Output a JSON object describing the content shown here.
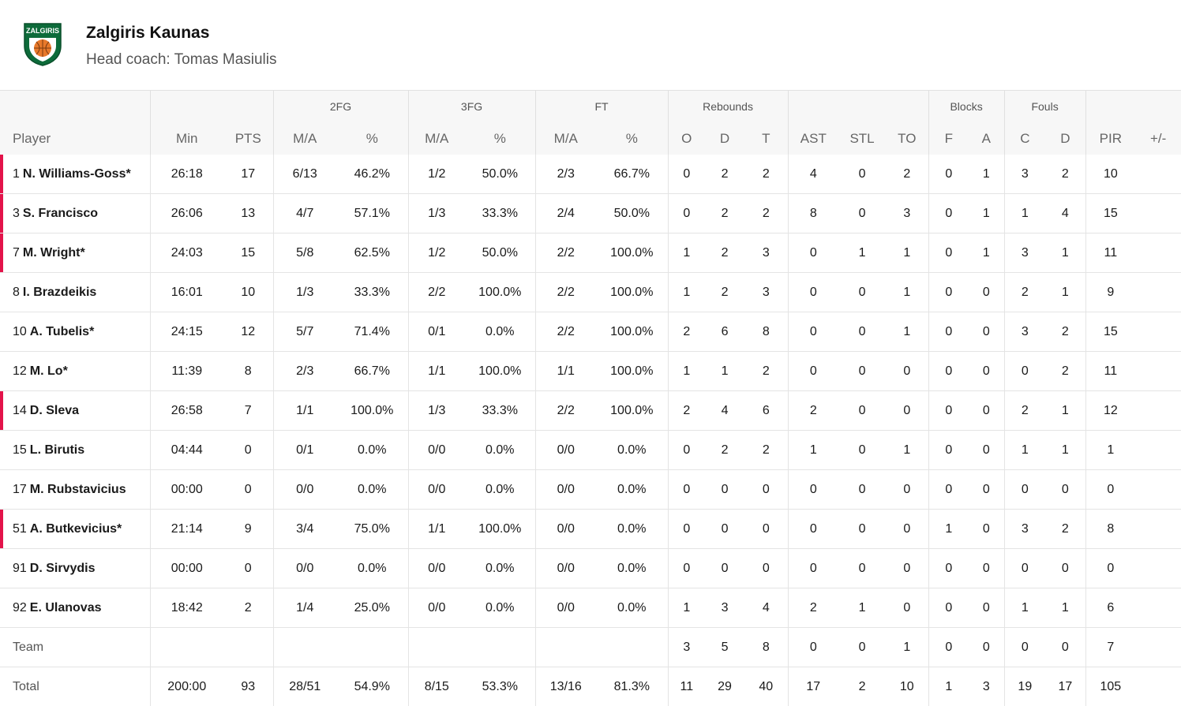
{
  "team": {
    "name": "Zalgiris Kaunas",
    "coach_label": "Head coach:",
    "coach_name": "Tomas Masiulis",
    "logo_text": "ZALGIRIS",
    "colors": {
      "green": "#0d6b3a",
      "orange": "#e8792a",
      "starter_marker": "#e3134a"
    }
  },
  "table": {
    "groups": {
      "fg2": "2FG",
      "fg3": "3FG",
      "ft": "FT",
      "rebounds": "Rebounds",
      "blocks": "Blocks",
      "fouls": "Fouls"
    },
    "columns": {
      "player": "Player",
      "min": "Min",
      "pts": "PTS",
      "fg2_ma": "M/A",
      "fg2_pct": "%",
      "fg3_ma": "M/A",
      "fg3_pct": "%",
      "ft_ma": "M/A",
      "ft_pct": "%",
      "reb_o": "O",
      "reb_d": "D",
      "reb_t": "T",
      "ast": "AST",
      "stl": "STL",
      "to": "TO",
      "blk_f": "F",
      "blk_a": "A",
      "foul_c": "C",
      "foul_d": "D",
      "pir": "PIR",
      "pm": "+/-"
    },
    "players": [
      {
        "num": "1",
        "name": "N. Williams-Goss*",
        "starter": true,
        "min": "26:18",
        "pts": "17",
        "fg2_ma": "6/13",
        "fg2_pct": "46.2%",
        "fg3_ma": "1/2",
        "fg3_pct": "50.0%",
        "ft_ma": "2/3",
        "ft_pct": "66.7%",
        "reb_o": "0",
        "reb_d": "2",
        "reb_t": "2",
        "ast": "4",
        "stl": "0",
        "to": "2",
        "blk_f": "0",
        "blk_a": "1",
        "foul_c": "3",
        "foul_d": "2",
        "pir": "10",
        "pm": ""
      },
      {
        "num": "3",
        "name": "S. Francisco",
        "starter": true,
        "min": "26:06",
        "pts": "13",
        "fg2_ma": "4/7",
        "fg2_pct": "57.1%",
        "fg3_ma": "1/3",
        "fg3_pct": "33.3%",
        "ft_ma": "2/4",
        "ft_pct": "50.0%",
        "reb_o": "0",
        "reb_d": "2",
        "reb_t": "2",
        "ast": "8",
        "stl": "0",
        "to": "3",
        "blk_f": "0",
        "blk_a": "1",
        "foul_c": "1",
        "foul_d": "4",
        "pir": "15",
        "pm": ""
      },
      {
        "num": "7",
        "name": "M. Wright*",
        "starter": true,
        "min": "24:03",
        "pts": "15",
        "fg2_ma": "5/8",
        "fg2_pct": "62.5%",
        "fg3_ma": "1/2",
        "fg3_pct": "50.0%",
        "ft_ma": "2/2",
        "ft_pct": "100.0%",
        "reb_o": "1",
        "reb_d": "2",
        "reb_t": "3",
        "ast": "0",
        "stl": "1",
        "to": "1",
        "blk_f": "0",
        "blk_a": "1",
        "foul_c": "3",
        "foul_d": "1",
        "pir": "11",
        "pm": ""
      },
      {
        "num": "8",
        "name": "I. Brazdeikis",
        "starter": false,
        "min": "16:01",
        "pts": "10",
        "fg2_ma": "1/3",
        "fg2_pct": "33.3%",
        "fg3_ma": "2/2",
        "fg3_pct": "100.0%",
        "ft_ma": "2/2",
        "ft_pct": "100.0%",
        "reb_o": "1",
        "reb_d": "2",
        "reb_t": "3",
        "ast": "0",
        "stl": "0",
        "to": "1",
        "blk_f": "0",
        "blk_a": "0",
        "foul_c": "2",
        "foul_d": "1",
        "pir": "9",
        "pm": ""
      },
      {
        "num": "10",
        "name": "A. Tubelis*",
        "starter": false,
        "min": "24:15",
        "pts": "12",
        "fg2_ma": "5/7",
        "fg2_pct": "71.4%",
        "fg3_ma": "0/1",
        "fg3_pct": "0.0%",
        "ft_ma": "2/2",
        "ft_pct": "100.0%",
        "reb_o": "2",
        "reb_d": "6",
        "reb_t": "8",
        "ast": "0",
        "stl": "0",
        "to": "1",
        "blk_f": "0",
        "blk_a": "0",
        "foul_c": "3",
        "foul_d": "2",
        "pir": "15",
        "pm": ""
      },
      {
        "num": "12",
        "name": "M. Lo*",
        "starter": false,
        "min": "11:39",
        "pts": "8",
        "fg2_ma": "2/3",
        "fg2_pct": "66.7%",
        "fg3_ma": "1/1",
        "fg3_pct": "100.0%",
        "ft_ma": "1/1",
        "ft_pct": "100.0%",
        "reb_o": "1",
        "reb_d": "1",
        "reb_t": "2",
        "ast": "0",
        "stl": "0",
        "to": "0",
        "blk_f": "0",
        "blk_a": "0",
        "foul_c": "0",
        "foul_d": "2",
        "pir": "11",
        "pm": ""
      },
      {
        "num": "14",
        "name": "D. Sleva",
        "starter": true,
        "min": "26:58",
        "pts": "7",
        "fg2_ma": "1/1",
        "fg2_pct": "100.0%",
        "fg3_ma": "1/3",
        "fg3_pct": "33.3%",
        "ft_ma": "2/2",
        "ft_pct": "100.0%",
        "reb_o": "2",
        "reb_d": "4",
        "reb_t": "6",
        "ast": "2",
        "stl": "0",
        "to": "0",
        "blk_f": "0",
        "blk_a": "0",
        "foul_c": "2",
        "foul_d": "1",
        "pir": "12",
        "pm": ""
      },
      {
        "num": "15",
        "name": "L. Birutis",
        "starter": false,
        "min": "04:44",
        "pts": "0",
        "fg2_ma": "0/1",
        "fg2_pct": "0.0%",
        "fg3_ma": "0/0",
        "fg3_pct": "0.0%",
        "ft_ma": "0/0",
        "ft_pct": "0.0%",
        "reb_o": "0",
        "reb_d": "2",
        "reb_t": "2",
        "ast": "1",
        "stl": "0",
        "to": "1",
        "blk_f": "0",
        "blk_a": "0",
        "foul_c": "1",
        "foul_d": "1",
        "pir": "1",
        "pm": ""
      },
      {
        "num": "17",
        "name": "M. Rubstavicius",
        "starter": false,
        "min": "00:00",
        "pts": "0",
        "fg2_ma": "0/0",
        "fg2_pct": "0.0%",
        "fg3_ma": "0/0",
        "fg3_pct": "0.0%",
        "ft_ma": "0/0",
        "ft_pct": "0.0%",
        "reb_o": "0",
        "reb_d": "0",
        "reb_t": "0",
        "ast": "0",
        "stl": "0",
        "to": "0",
        "blk_f": "0",
        "blk_a": "0",
        "foul_c": "0",
        "foul_d": "0",
        "pir": "0",
        "pm": ""
      },
      {
        "num": "51",
        "name": "A. Butkevicius*",
        "starter": true,
        "min": "21:14",
        "pts": "9",
        "fg2_ma": "3/4",
        "fg2_pct": "75.0%",
        "fg3_ma": "1/1",
        "fg3_pct": "100.0%",
        "ft_ma": "0/0",
        "ft_pct": "0.0%",
        "reb_o": "0",
        "reb_d": "0",
        "reb_t": "0",
        "ast": "0",
        "stl": "0",
        "to": "0",
        "blk_f": "1",
        "blk_a": "0",
        "foul_c": "3",
        "foul_d": "2",
        "pir": "8",
        "pm": ""
      },
      {
        "num": "91",
        "name": "D. Sirvydis",
        "starter": false,
        "min": "00:00",
        "pts": "0",
        "fg2_ma": "0/0",
        "fg2_pct": "0.0%",
        "fg3_ma": "0/0",
        "fg3_pct": "0.0%",
        "ft_ma": "0/0",
        "ft_pct": "0.0%",
        "reb_o": "0",
        "reb_d": "0",
        "reb_t": "0",
        "ast": "0",
        "stl": "0",
        "to": "0",
        "blk_f": "0",
        "blk_a": "0",
        "foul_c": "0",
        "foul_d": "0",
        "pir": "0",
        "pm": ""
      },
      {
        "num": "92",
        "name": "E. Ulanovas",
        "starter": false,
        "min": "18:42",
        "pts": "2",
        "fg2_ma": "1/4",
        "fg2_pct": "25.0%",
        "fg3_ma": "0/0",
        "fg3_pct": "0.0%",
        "ft_ma": "0/0",
        "ft_pct": "0.0%",
        "reb_o": "1",
        "reb_d": "3",
        "reb_t": "4",
        "ast": "2",
        "stl": "1",
        "to": "0",
        "blk_f": "0",
        "blk_a": "0",
        "foul_c": "1",
        "foul_d": "1",
        "pir": "6",
        "pm": ""
      }
    ],
    "team_row": {
      "label": "Team",
      "min": "",
      "pts": "",
      "fg2_ma": "",
      "fg2_pct": "",
      "fg3_ma": "",
      "fg3_pct": "",
      "ft_ma": "",
      "ft_pct": "",
      "reb_o": "3",
      "reb_d": "5",
      "reb_t": "8",
      "ast": "0",
      "stl": "0",
      "to": "1",
      "blk_f": "0",
      "blk_a": "0",
      "foul_c": "0",
      "foul_d": "0",
      "pir": "7",
      "pm": ""
    },
    "total_row": {
      "label": "Total",
      "min": "200:00",
      "pts": "93",
      "fg2_ma": "28/51",
      "fg2_pct": "54.9%",
      "fg3_ma": "8/15",
      "fg3_pct": "53.3%",
      "ft_ma": "13/16",
      "ft_pct": "81.3%",
      "reb_o": "11",
      "reb_d": "29",
      "reb_t": "40",
      "ast": "17",
      "stl": "2",
      "to": "10",
      "blk_f": "1",
      "blk_a": "3",
      "foul_c": "19",
      "foul_d": "17",
      "pir": "105",
      "pm": ""
    }
  }
}
